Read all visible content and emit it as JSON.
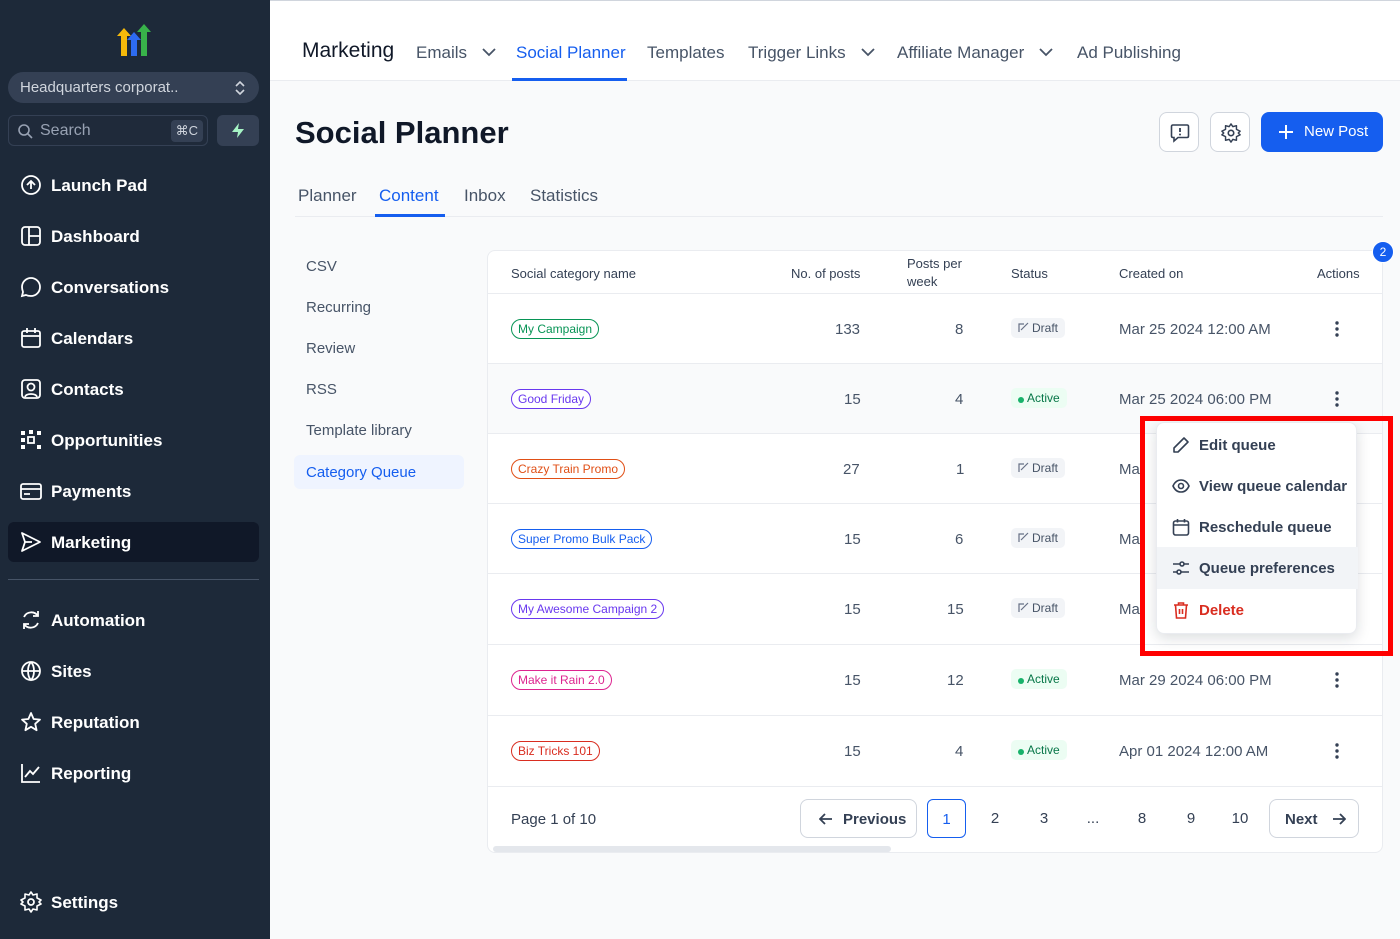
{
  "sidebar": {
    "location": "Headquarters corporat..",
    "search_placeholder": "Search",
    "search_shortcut": "⌘C",
    "items": [
      {
        "label": "Launch Pad"
      },
      {
        "label": "Dashboard"
      },
      {
        "label": "Conversations"
      },
      {
        "label": "Calendars"
      },
      {
        "label": "Contacts"
      },
      {
        "label": "Opportunities"
      },
      {
        "label": "Payments"
      },
      {
        "label": "Marketing"
      },
      {
        "label": "Automation"
      },
      {
        "label": "Sites"
      },
      {
        "label": "Reputation"
      },
      {
        "label": "Reporting"
      }
    ],
    "settings_label": "Settings"
  },
  "topnav": {
    "title": "Marketing",
    "tabs": [
      {
        "label": "Emails"
      },
      {
        "label": "Social Planner"
      },
      {
        "label": "Templates"
      },
      {
        "label": "Trigger Links"
      },
      {
        "label": "Affiliate Manager"
      },
      {
        "label": "Ad Publishing"
      }
    ]
  },
  "page": {
    "title": "Social Planner",
    "new_post_label": "New Post",
    "subtabs": [
      {
        "label": "Planner"
      },
      {
        "label": "Content"
      },
      {
        "label": "Inbox"
      },
      {
        "label": "Statistics"
      }
    ],
    "left_menu": [
      {
        "label": "CSV"
      },
      {
        "label": "Recurring"
      },
      {
        "label": "Review"
      },
      {
        "label": "RSS"
      },
      {
        "label": "Template library"
      },
      {
        "label": "Category Queue"
      }
    ]
  },
  "table": {
    "badge": "2",
    "headers": {
      "name": "Social category name",
      "posts": "No. of posts",
      "per_week_1": "Posts per",
      "per_week_2": "week",
      "status": "Status",
      "created": "Created on",
      "actions": "Actions"
    },
    "rows": [
      {
        "name": "My Campaign",
        "color": "#079455",
        "posts": "133",
        "per_week": "8",
        "status": "Draft",
        "created": "Mar 25 2024 12:00 AM"
      },
      {
        "name": "Good Friday",
        "color": "#6938ef",
        "posts": "15",
        "per_week": "4",
        "status": "Active",
        "created": "Mar 25 2024 06:00 PM"
      },
      {
        "name": "Crazy Train Promo",
        "color": "#e04f16",
        "posts": "27",
        "per_week": "1",
        "status": "Draft",
        "created": "Ma"
      },
      {
        "name": "Super Promo Bulk Pack",
        "color": "#155eef",
        "posts": "15",
        "per_week": "6",
        "status": "Draft",
        "created": "Ma"
      },
      {
        "name": "My Awesome Campaign 2",
        "color": "#6938ef",
        "posts": "15",
        "per_week": "15",
        "status": "Draft",
        "created": "Ma"
      },
      {
        "name": "Make it Rain 2.0",
        "color": "#dd2590",
        "posts": "15",
        "per_week": "12",
        "status": "Active",
        "created": "Mar 29 2024 06:00 PM"
      },
      {
        "name": "Biz Tricks 101",
        "color": "#d92d20",
        "posts": "15",
        "per_week": "4",
        "status": "Active",
        "created": "Apr 01 2024 12:00 AM"
      }
    ],
    "pagination": {
      "info": "Page 1 of 10",
      "previous": "Previous",
      "next": "Next",
      "pages": [
        "1",
        "2",
        "3",
        "...",
        "8",
        "9",
        "10"
      ]
    }
  },
  "dropdown": {
    "items": [
      {
        "label": "Edit queue"
      },
      {
        "label": "View queue calendar"
      },
      {
        "label": "Reschedule queue"
      },
      {
        "label": "Queue preferences"
      },
      {
        "label": "Delete"
      }
    ]
  }
}
